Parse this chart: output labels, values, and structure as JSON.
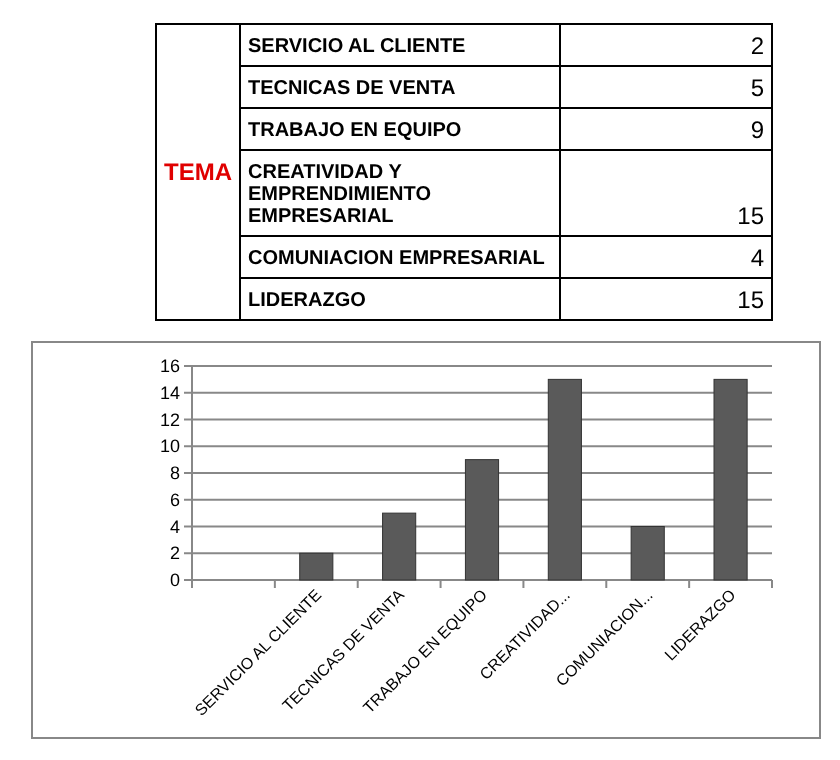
{
  "chart_data": [
    {
      "type": "other",
      "ylabel": "TEMA",
      "categories": [
        "SERVICIO AL CLIENTE",
        "TECNICAS DE VENTA",
        "TRABAJO EN EQUIPO",
        "CREATIVIDAD Y EMPRENDIMIENTO EMPRESARIAL",
        "COMUNIACION EMPRESARIAL",
        "LIDERAZGO"
      ],
      "values": [
        2,
        5,
        9,
        15,
        4,
        15
      ],
      "data_labels": true
    },
    {
      "type": "bar",
      "categories": [
        null,
        "SERVICIO AL CLIENTE",
        "TECNICAS DE VENTA",
        "TRABAJO EN EQUIPO",
        "CREATIVIDAD...",
        "COMUNIACION...",
        "LIDERAZGO"
      ],
      "values": [
        null,
        2,
        5,
        9,
        15,
        4,
        15
      ],
      "color": "#5a5a5a",
      "ylim": [
        0,
        16
      ],
      "yticks": [
        0,
        2,
        4,
        6,
        8,
        10,
        12,
        14,
        16
      ],
      "grid": "y"
    }
  ]
}
